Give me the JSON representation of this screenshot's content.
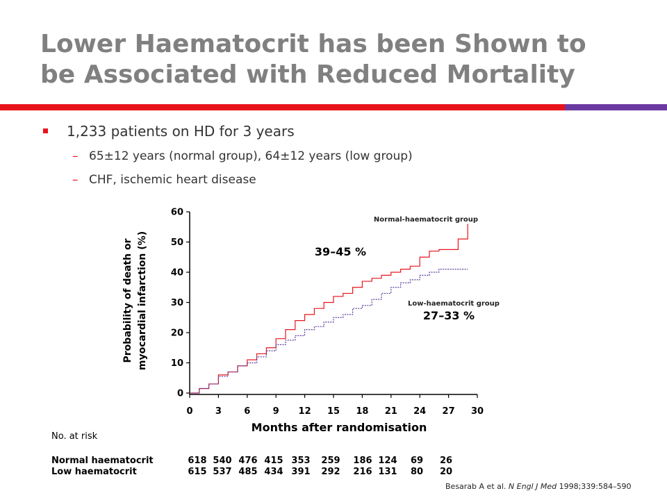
{
  "title": {
    "line1": "Lower Haematocrit has been Shown to",
    "line2": "be Associated with Reduced Mortality"
  },
  "bullets": {
    "main": "1,233 patients on HD for 3 years",
    "sub1": "65±12 years (normal group), 64±12 years (low group)",
    "sub2": "CHF, ischemic heart disease"
  },
  "chart_data": {
    "type": "line",
    "ylabel_line1": "Probability of death or",
    "ylabel_line2": "myocardial infarction (%)",
    "xlabel": "Months after randomisation",
    "xlim": [
      0,
      30
    ],
    "ylim": [
      0,
      60
    ],
    "x_ticks": [
      0,
      3,
      6,
      9,
      12,
      15,
      18,
      21,
      24,
      27,
      30
    ],
    "y_ticks": [
      0,
      10,
      20,
      30,
      40,
      50,
      60
    ],
    "grid": false,
    "series": [
      {
        "name": "Normal-haematocrit group",
        "color": "#e8141c",
        "style": "solid",
        "points": [
          [
            0,
            0
          ],
          [
            1,
            1.5
          ],
          [
            2,
            3
          ],
          [
            3,
            6
          ],
          [
            4,
            7
          ],
          [
            5,
            9
          ],
          [
            6,
            11
          ],
          [
            7,
            13
          ],
          [
            8,
            15
          ],
          [
            9,
            18
          ],
          [
            10,
            21
          ],
          [
            11,
            24
          ],
          [
            12,
            26
          ],
          [
            13,
            28
          ],
          [
            14,
            30
          ],
          [
            15,
            32
          ],
          [
            16,
            33
          ],
          [
            17,
            35
          ],
          [
            18,
            37
          ],
          [
            19,
            38
          ],
          [
            20,
            39
          ],
          [
            21,
            40
          ],
          [
            22,
            41
          ],
          [
            23,
            42
          ],
          [
            24,
            45
          ],
          [
            25,
            47
          ],
          [
            26,
            47.5
          ],
          [
            27,
            47.5
          ],
          [
            28,
            51
          ],
          [
            29,
            56
          ]
        ]
      },
      {
        "name": "Low-haematocrit group",
        "color": "#5a3a9a",
        "style": "dotted",
        "points": [
          [
            0,
            0
          ],
          [
            1,
            1.5
          ],
          [
            2,
            3
          ],
          [
            3,
            5.5
          ],
          [
            4,
            7
          ],
          [
            5,
            9
          ],
          [
            6,
            10
          ],
          [
            7,
            12
          ],
          [
            8,
            14
          ],
          [
            9,
            16
          ],
          [
            10,
            17.5
          ],
          [
            11,
            19
          ],
          [
            12,
            21
          ],
          [
            13,
            22
          ],
          [
            14,
            23.5
          ],
          [
            15,
            25
          ],
          [
            16,
            26
          ],
          [
            17,
            28
          ],
          [
            18,
            29
          ],
          [
            19,
            31
          ],
          [
            20,
            33
          ],
          [
            21,
            35
          ],
          [
            22,
            36.5
          ],
          [
            23,
            37.5
          ],
          [
            24,
            39
          ],
          [
            25,
            40
          ],
          [
            26,
            41
          ],
          [
            27,
            41
          ],
          [
            28,
            41
          ],
          [
            29,
            41
          ]
        ]
      }
    ],
    "annotations": {
      "normal_range": "39–45 %",
      "low_range": "27–33 %"
    },
    "risk_table": {
      "header": "No. at risk",
      "rows": [
        {
          "label": "Normal haematocrit",
          "values": [
            "618",
            "540",
            "476",
            "415",
            "353",
            "259",
            "186",
            "124",
            "69",
            "26"
          ]
        },
        {
          "label": "Low haematocrit",
          "values": [
            "615",
            "537",
            "485",
            "434",
            "391",
            "292",
            "216",
            "131",
            "80",
            "20"
          ]
        }
      ]
    }
  },
  "citation": {
    "prefix": "Besarab A et al. ",
    "journal": "N Engl J Med",
    "suffix": " 1998;339:584–590"
  }
}
